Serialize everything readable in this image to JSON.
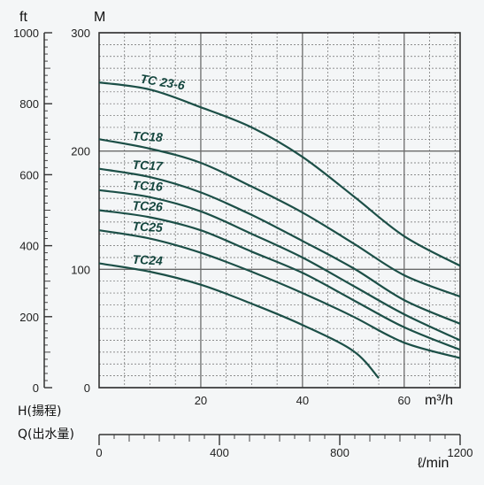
{
  "chart_data": {
    "type": "line",
    "xlabel": "m³/h",
    "ylabel_m": "M",
    "ylabel_ft": "ft",
    "xlim": [
      0,
      71
    ],
    "ylim_m": [
      0,
      300
    ],
    "ylim_ft": [
      0,
      1000
    ],
    "x_ticks": [
      "20",
      "40",
      "60"
    ],
    "y_m_ticks": [
      "0",
      "100",
      "200",
      "300"
    ],
    "y_ft_ticks": [
      "0",
      "200",
      "400",
      "600",
      "800",
      "1000"
    ],
    "grid": true,
    "secondary_axis": {
      "label_h": "H(揚程)",
      "label_q": "Q(出水量)",
      "unit": "ℓ/min",
      "ticks": [
        "0",
        "400",
        "800",
        "1200"
      ],
      "max": 1200
    },
    "series": [
      {
        "name": "TC 23-6",
        "x": [
          0,
          10,
          20,
          30,
          40,
          50,
          60,
          71
        ],
        "y": [
          258,
          252,
          237,
          220,
          195,
          162,
          128,
          103
        ]
      },
      {
        "name": "TC18",
        "x": [
          0,
          10,
          20,
          30,
          40,
          50,
          60,
          71
        ],
        "y": [
          210,
          202,
          190,
          170,
          148,
          122,
          95,
          77
        ]
      },
      {
        "name": "TC17",
        "x": [
          0,
          10,
          20,
          30,
          40,
          50,
          60,
          71
        ],
        "y": [
          185,
          178,
          165,
          146,
          124,
          101,
          74,
          54
        ]
      },
      {
        "name": "TC16",
        "x": [
          0,
          10,
          20,
          30,
          40,
          50,
          60,
          71
        ],
        "y": [
          167,
          161,
          149,
          130,
          110,
          86,
          62,
          40
        ]
      },
      {
        "name": "TC26",
        "x": [
          0,
          10,
          20,
          30,
          40,
          50,
          60,
          71
        ],
        "y": [
          150,
          144,
          133,
          115,
          97,
          74,
          51,
          32
        ]
      },
      {
        "name": "TC25",
        "x": [
          0,
          10,
          20,
          30,
          40,
          50,
          60,
          71
        ],
        "y": [
          133,
          126,
          114,
          98,
          80,
          60,
          38,
          25
        ]
      },
      {
        "name": "TC24",
        "x": [
          0,
          10,
          20,
          30,
          40,
          50,
          55
        ],
        "y": [
          105,
          98,
          87,
          71,
          53,
          31,
          8
        ]
      }
    ]
  }
}
